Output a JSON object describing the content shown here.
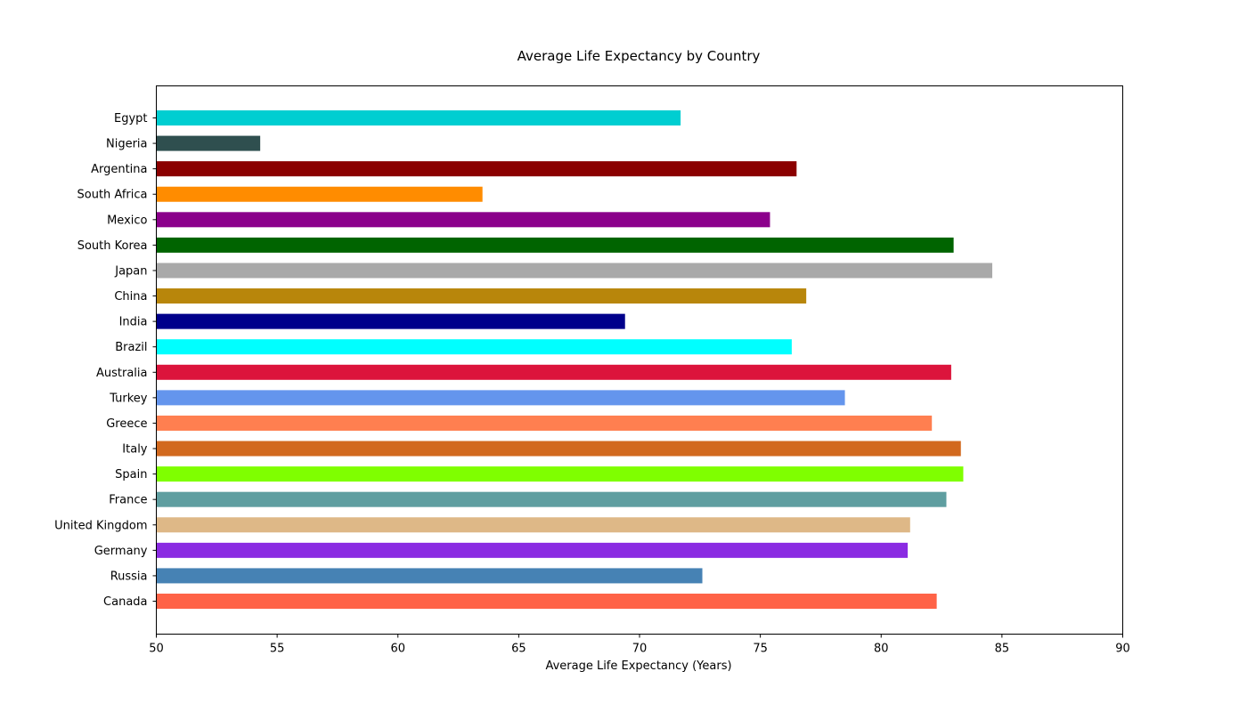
{
  "chart_data": {
    "type": "bar",
    "orientation": "horizontal",
    "title": "Average Life Expectancy by Country",
    "xlabel": "Average Life Expectancy (Years)",
    "ylabel": "",
    "xlim": [
      50,
      90
    ],
    "xticks": [
      50,
      55,
      60,
      65,
      70,
      75,
      80,
      85,
      90
    ],
    "grid": false,
    "legend": "none",
    "categories": [
      "Canada",
      "Russia",
      "Germany",
      "United Kingdom",
      "France",
      "Spain",
      "Italy",
      "Greece",
      "Turkey",
      "Australia",
      "Brazil",
      "India",
      "China",
      "Japan",
      "South Korea",
      "Mexico",
      "South Africa",
      "Argentina",
      "Nigeria",
      "Egypt"
    ],
    "values": [
      82.3,
      72.6,
      81.1,
      81.2,
      82.7,
      83.4,
      83.3,
      82.1,
      78.5,
      82.9,
      76.3,
      69.4,
      76.9,
      84.6,
      83.0,
      75.4,
      63.5,
      76.5,
      54.3,
      71.7
    ],
    "colors": [
      "#ff6347",
      "#4682b4",
      "#8a2be2",
      "#deb887",
      "#5f9ea0",
      "#7fff00",
      "#d2691e",
      "#ff7f50",
      "#6495ed",
      "#dc143c",
      "#00ffff",
      "#00008b",
      "#b8860b",
      "#a9a9a9",
      "#006400",
      "#8b008b",
      "#ff8c00",
      "#8b0000",
      "#2f4f4f",
      "#00ced1"
    ]
  }
}
